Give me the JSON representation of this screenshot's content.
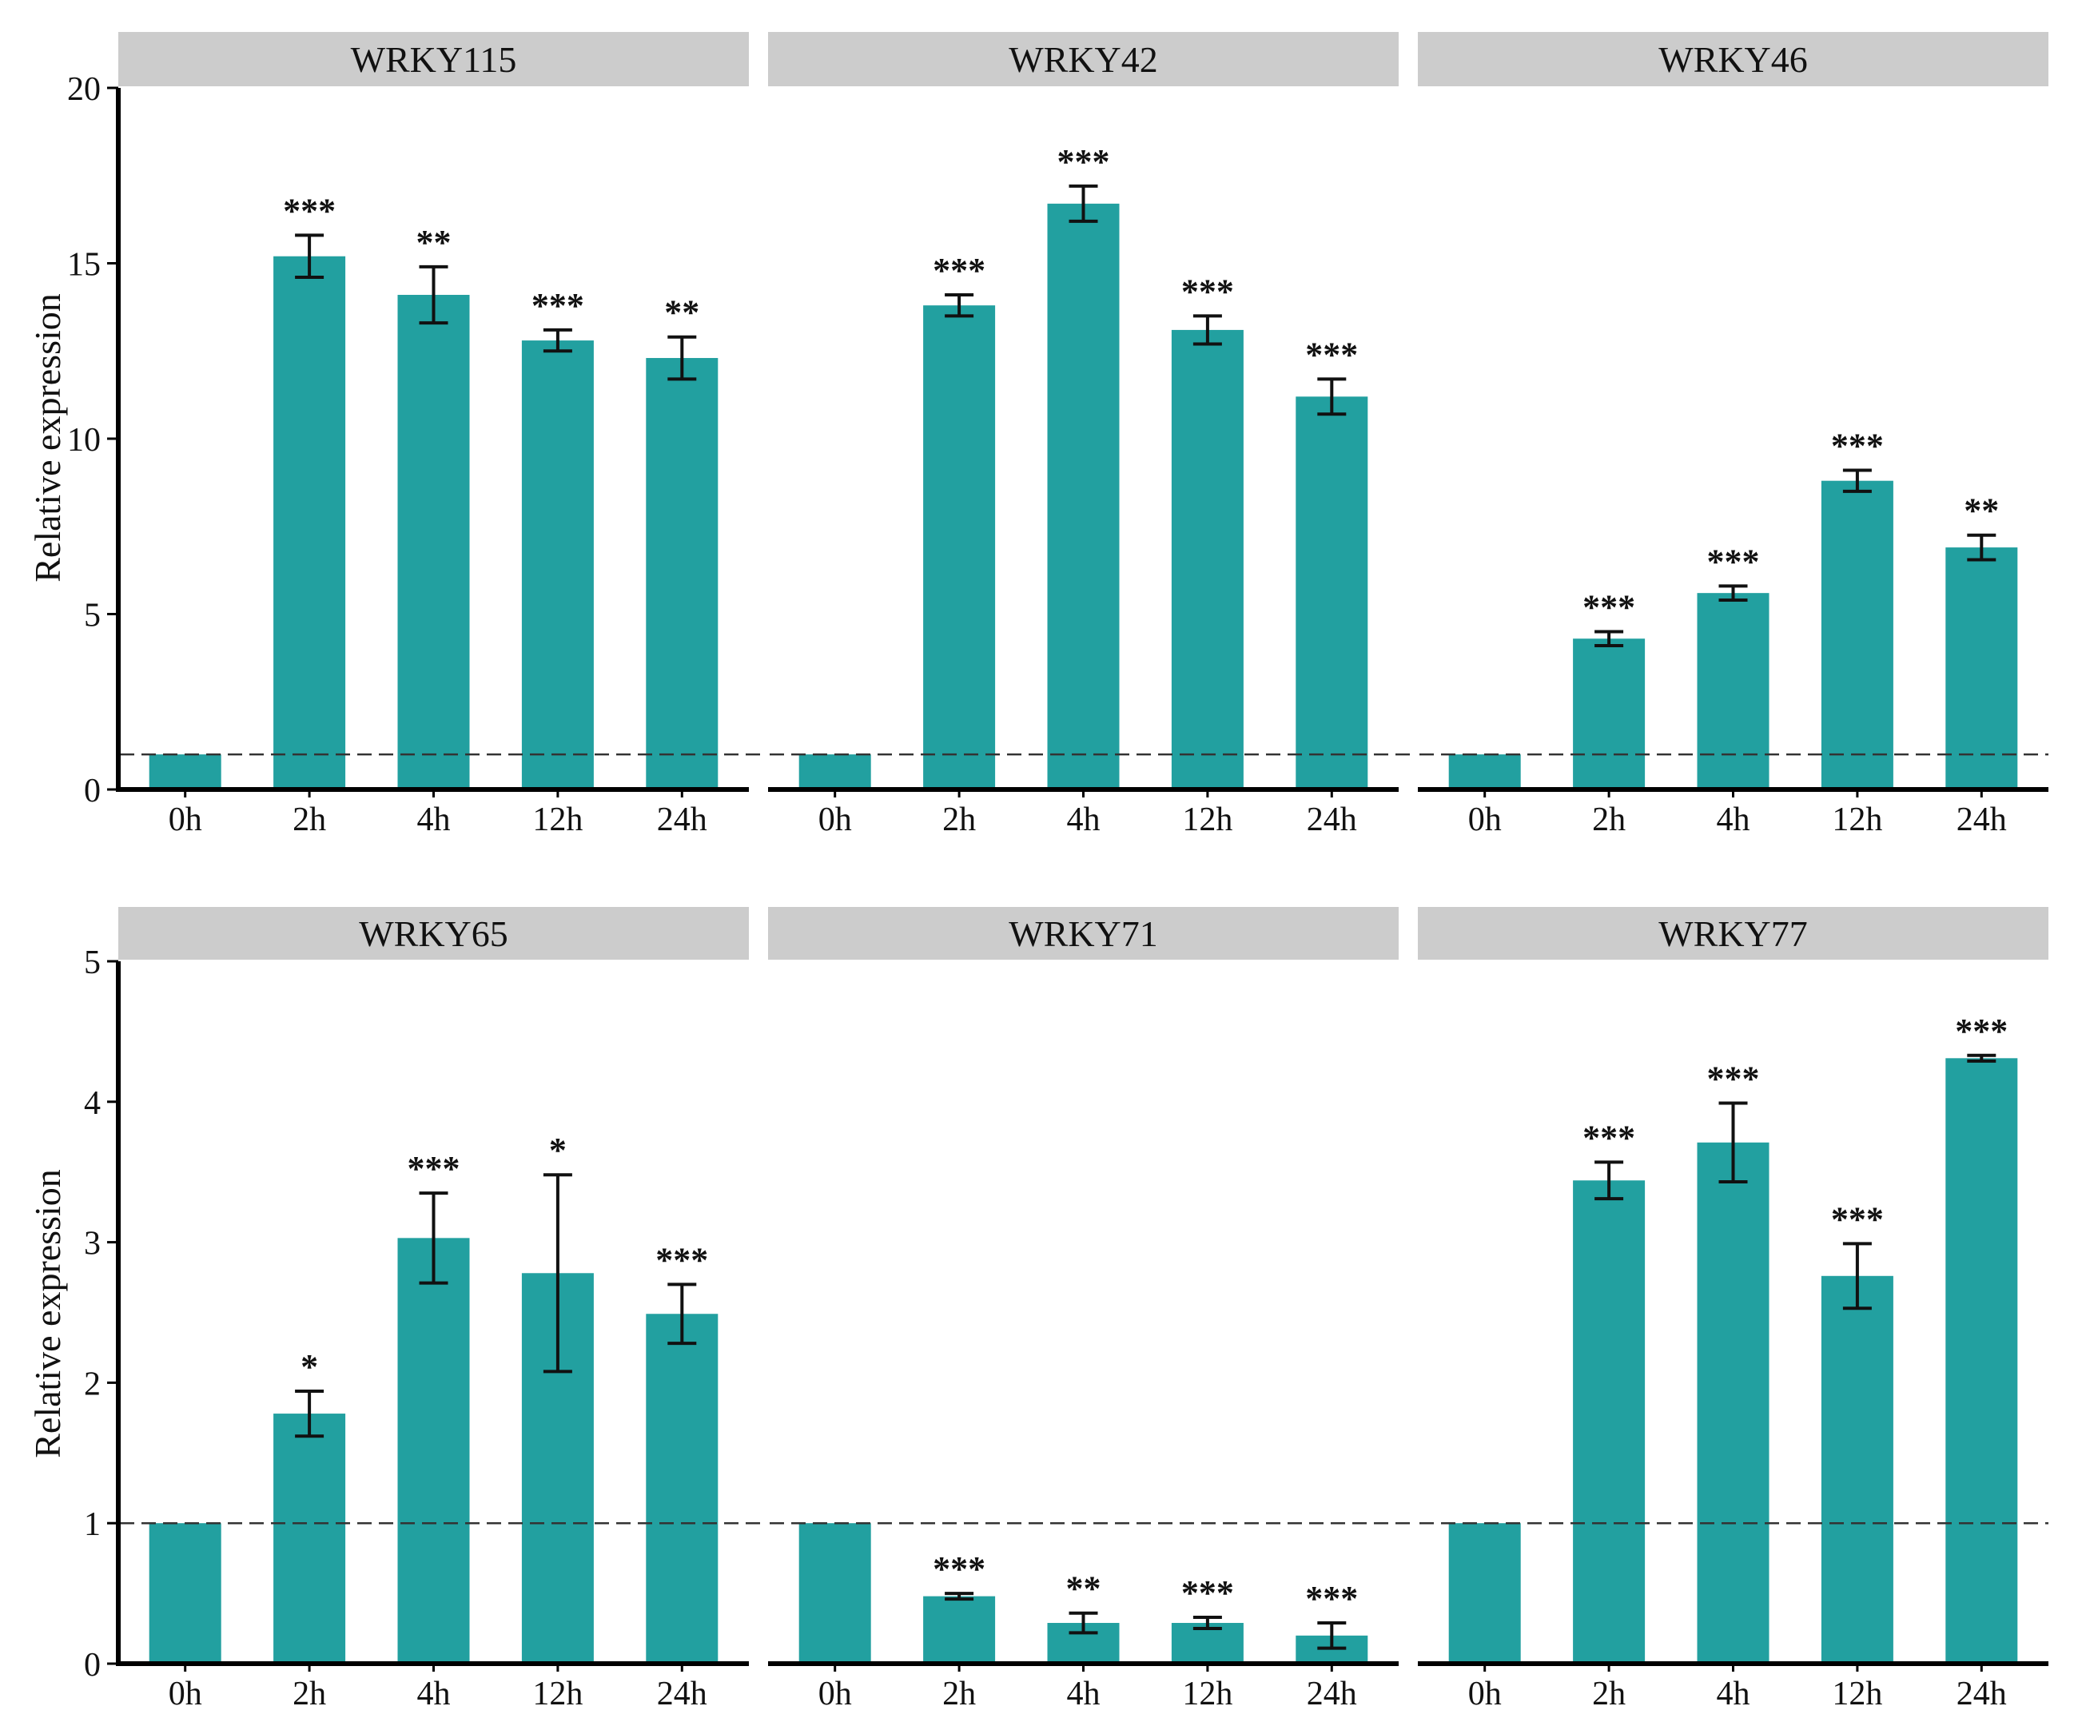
{
  "figure": {
    "y_axis_label": "Relative expression",
    "reference_level": 1,
    "colors": {
      "bar": "#22a0a0",
      "strip": "#cccccc",
      "axis": "#000000",
      "reference_line": "#333333"
    }
  },
  "chart_data": [
    {
      "type": "bar",
      "title": "WRKY115",
      "xlabel": "",
      "ylabel": "Relative expression",
      "ylim": [
        0,
        20
      ],
      "yticks": [
        0,
        5,
        10,
        15,
        20
      ],
      "categories": [
        "0h",
        "2h",
        "4h",
        "12h",
        "24h"
      ],
      "values": [
        1.0,
        15.2,
        14.1,
        12.8,
        12.3
      ],
      "errors": [
        0.0,
        0.6,
        0.8,
        0.3,
        0.6
      ],
      "significance": [
        "",
        "***",
        "**",
        "***",
        "**"
      ]
    },
    {
      "type": "bar",
      "title": "WRKY42",
      "xlabel": "",
      "ylabel": "",
      "ylim": [
        0,
        20
      ],
      "yticks": [
        0,
        5,
        10,
        15,
        20
      ],
      "categories": [
        "0h",
        "2h",
        "4h",
        "12h",
        "24h"
      ],
      "values": [
        1.0,
        13.8,
        16.7,
        13.1,
        11.2
      ],
      "errors": [
        0.0,
        0.3,
        0.5,
        0.4,
        0.5
      ],
      "significance": [
        "",
        "***",
        "***",
        "***",
        "***"
      ]
    },
    {
      "type": "bar",
      "title": "WRKY46",
      "xlabel": "",
      "ylabel": "",
      "ylim": [
        0,
        20
      ],
      "yticks": [
        0,
        5,
        10,
        15,
        20
      ],
      "categories": [
        "0h",
        "2h",
        "4h",
        "12h",
        "24h"
      ],
      "values": [
        1.0,
        4.3,
        5.6,
        8.8,
        6.9
      ],
      "errors": [
        0.0,
        0.2,
        0.2,
        0.3,
        0.35
      ],
      "significance": [
        "",
        "***",
        "***",
        "***",
        "**"
      ]
    },
    {
      "type": "bar",
      "title": "WRKY65",
      "xlabel": "",
      "ylabel": "Relative expression",
      "ylim": [
        0,
        5
      ],
      "yticks": [
        0,
        1,
        2,
        3,
        4,
        5
      ],
      "categories": [
        "0h",
        "2h",
        "4h",
        "12h",
        "24h"
      ],
      "values": [
        1.0,
        1.78,
        3.03,
        2.78,
        2.49
      ],
      "errors": [
        0.0,
        0.16,
        0.32,
        0.7,
        0.21
      ],
      "significance": [
        "",
        "*",
        "***",
        "*",
        "***"
      ]
    },
    {
      "type": "bar",
      "title": "WRKY71",
      "xlabel": "",
      "ylabel": "",
      "ylim": [
        0,
        5
      ],
      "yticks": [
        0,
        1,
        2,
        3,
        4,
        5
      ],
      "categories": [
        "0h",
        "2h",
        "4h",
        "12h",
        "24h"
      ],
      "values": [
        1.0,
        0.48,
        0.29,
        0.29,
        0.2
      ],
      "errors": [
        0.0,
        0.02,
        0.07,
        0.04,
        0.09
      ],
      "significance": [
        "",
        "***",
        "**",
        "***",
        "***"
      ]
    },
    {
      "type": "bar",
      "title": "WRKY77",
      "xlabel": "",
      "ylabel": "",
      "ylim": [
        0,
        5
      ],
      "yticks": [
        0,
        1,
        2,
        3,
        4,
        5
      ],
      "categories": [
        "0h",
        "2h",
        "4h",
        "12h",
        "24h"
      ],
      "values": [
        1.0,
        3.44,
        3.71,
        2.76,
        4.31
      ],
      "errors": [
        0.0,
        0.13,
        0.28,
        0.23,
        0.02
      ],
      "significance": [
        "",
        "***",
        "***",
        "***",
        "***"
      ]
    }
  ]
}
